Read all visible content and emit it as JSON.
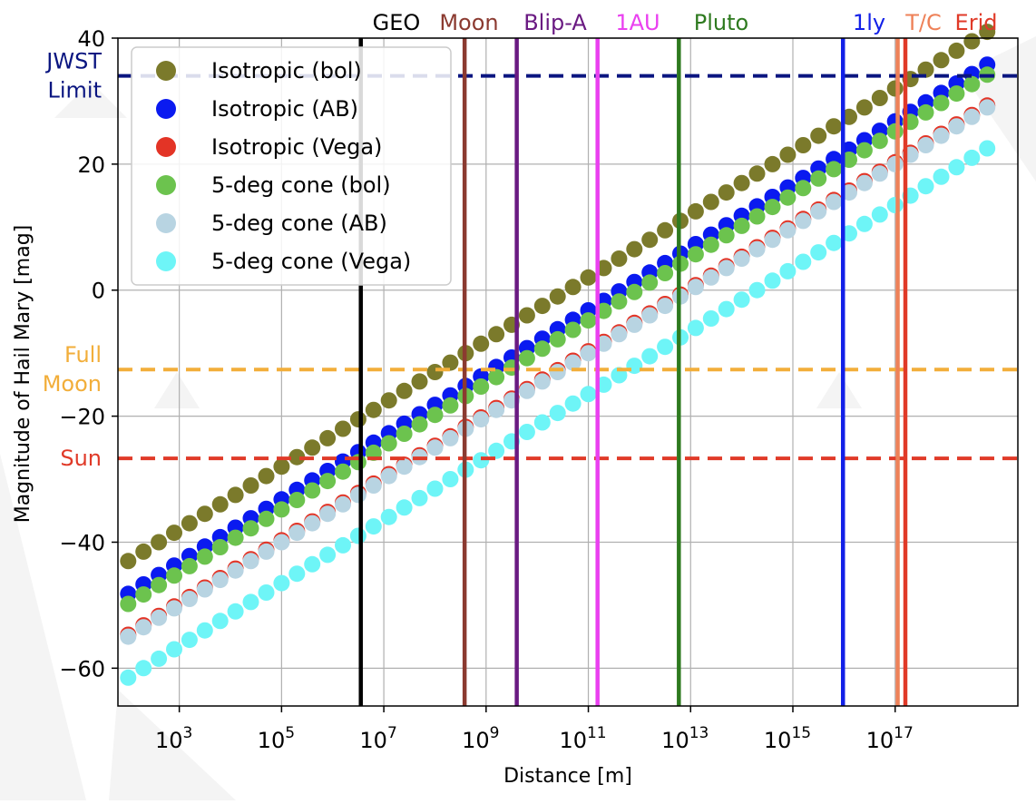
{
  "chart_data": {
    "type": "scatter",
    "title": "",
    "xlabel": "Distance [m]",
    "ylabel": "Magnitude of Hail Mary [mag]",
    "xscale": "log",
    "xlim_log10": [
      1.8,
      19.4
    ],
    "ylim": [
      -66,
      40
    ],
    "grid": true,
    "legend_position": "top-left",
    "x_tick_labels": [
      {
        "base": "10",
        "exp": "3",
        "log10": 3
      },
      {
        "base": "10",
        "exp": "5",
        "log10": 5
      },
      {
        "base": "10",
        "exp": "7",
        "log10": 7
      },
      {
        "base": "10",
        "exp": "9",
        "log10": 9
      },
      {
        "base": "10",
        "exp": "11",
        "log10": 11
      },
      {
        "base": "10",
        "exp": "13",
        "log10": 13
      },
      {
        "base": "10",
        "exp": "15",
        "log10": 15
      },
      {
        "base": "10",
        "exp": "17",
        "log10": 17
      }
    ],
    "y_ticks": [
      -60,
      -40,
      -20,
      0,
      20,
      40
    ],
    "y_tick_labels": [
      "−60",
      "−40",
      "−20",
      "0",
      "20",
      "40"
    ],
    "x_log10_start": 2.0,
    "x_log10_step": 0.3,
    "point_count": 57,
    "series": [
      {
        "name": "Isotropic (bol)",
        "color": "#7b7a2b",
        "y_start": -43.0,
        "y_step": 1.5
      },
      {
        "name": "Isotropic (AB)",
        "color": "#0a1af0",
        "y_start": -48.2,
        "y_step": 1.5
      },
      {
        "name": "Isotropic (Vega)",
        "color": "#e33426",
        "y_start": -54.7,
        "y_step": 1.5
      },
      {
        "name": "5-deg cone (bol)",
        "color": "#6cc34e",
        "y_start": -49.8,
        "y_step": 1.5
      },
      {
        "name": "5-deg cone (AB)",
        "color": "#b8d4e2",
        "y_start": -55.0,
        "y_step": 1.5
      },
      {
        "name": "5-deg cone (Vega)",
        "color": "#6ef5f7",
        "y_start": -61.5,
        "y_step": 1.5
      }
    ],
    "vertical_lines": [
      {
        "label": "GEO",
        "log10": 6.55,
        "color": "#000000"
      },
      {
        "label": "Moon",
        "log10": 8.58,
        "color": "#8b3a30"
      },
      {
        "label": "Blip-A",
        "log10": 9.6,
        "color": "#6a1a82"
      },
      {
        "label": "1AU",
        "log10": 11.18,
        "color": "#ea40f0"
      },
      {
        "label": "Pluto",
        "log10": 12.77,
        "color": "#2e7a1f"
      },
      {
        "label": "1ly",
        "log10": 15.98,
        "color": "#1220e8"
      },
      {
        "label": "T/C",
        "log10": 17.05,
        "color": "#ee8158"
      },
      {
        "label": "Erid",
        "log10": 17.2,
        "color": "#e03a28"
      }
    ],
    "horizontal_lines": [
      {
        "label": "JWST Limit",
        "label_lines": [
          "JWST",
          "Limit"
        ],
        "y": 34,
        "color": "#0a1580"
      },
      {
        "label": "Full Moon",
        "label_lines": [
          "Full",
          "Moon"
        ],
        "y": -12.6,
        "color": "#f2ae3a"
      },
      {
        "label": "Sun",
        "label_lines": [
          "Sun"
        ],
        "y": -26.7,
        "color": "#e03a28"
      }
    ]
  }
}
